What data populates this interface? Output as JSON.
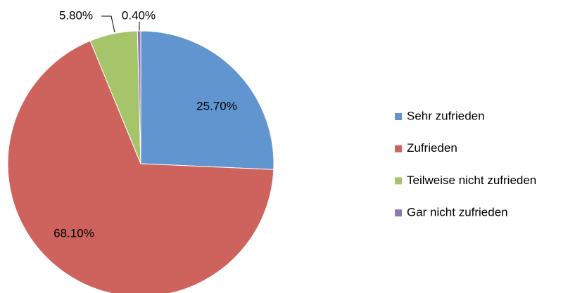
{
  "chart_data": {
    "type": "pie",
    "categories": [
      "Sehr zufrieden",
      "Zufrieden",
      "Teilweise nicht zufrieden",
      "Gar nicht zufrieden"
    ],
    "values": [
      25.7,
      68.1,
      5.8,
      0.4
    ],
    "value_labels": [
      "25.70%",
      "68.10%",
      "5.80%",
      "0.40%"
    ],
    "colors": [
      "#6095cf",
      "#cd635c",
      "#a6c469",
      "#8e77b5"
    ],
    "legend": "right"
  }
}
